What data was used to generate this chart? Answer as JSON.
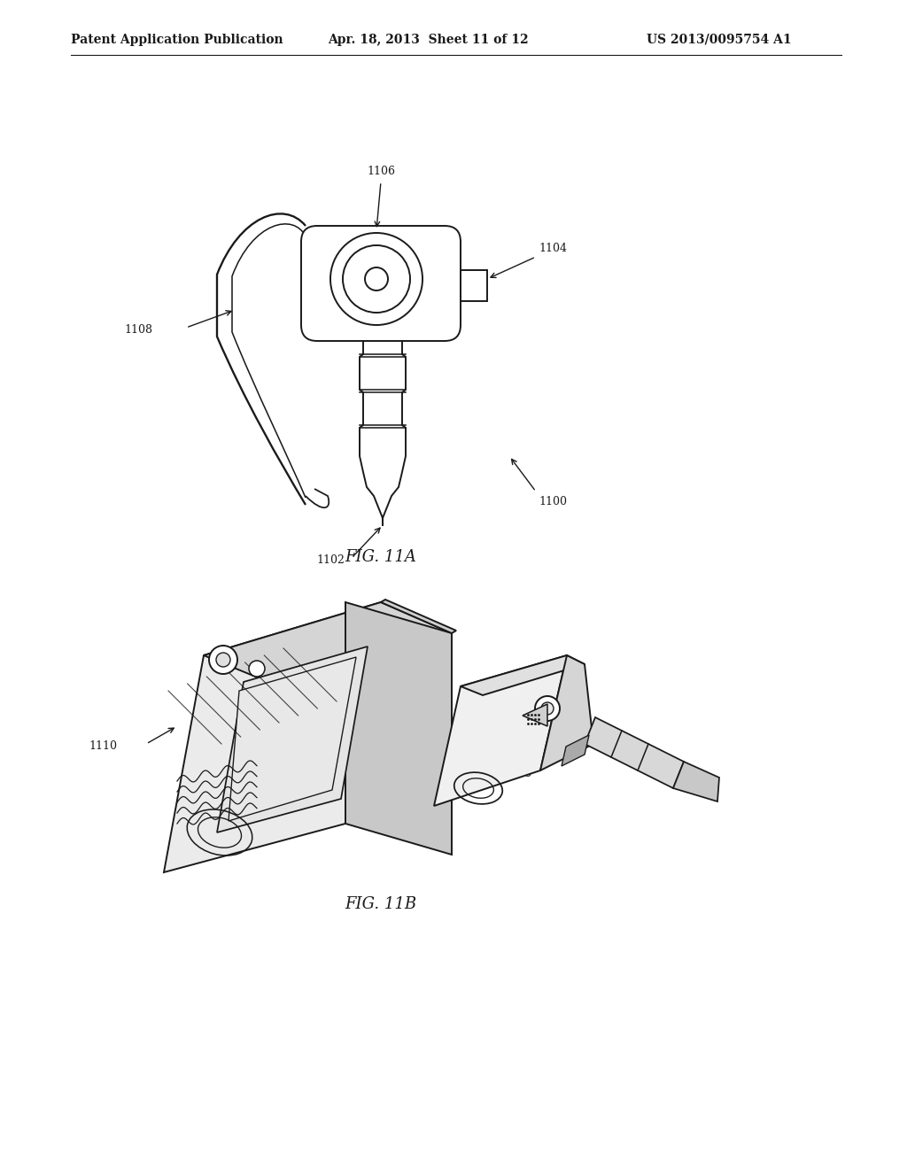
{
  "background_color": "#ffffff",
  "header_left": "Patent Application Publication",
  "header_center": "Apr. 18, 2013  Sheet 11 of 12",
  "header_right": "US 2013/0095754 A1",
  "fig_label_A": "FIG. 11A",
  "fig_label_B": "FIG. 11B",
  "line_color": "#1a1a1a",
  "line_width": 1.4,
  "font_size_header": 10,
  "font_size_label": 9,
  "font_size_fig": 13
}
